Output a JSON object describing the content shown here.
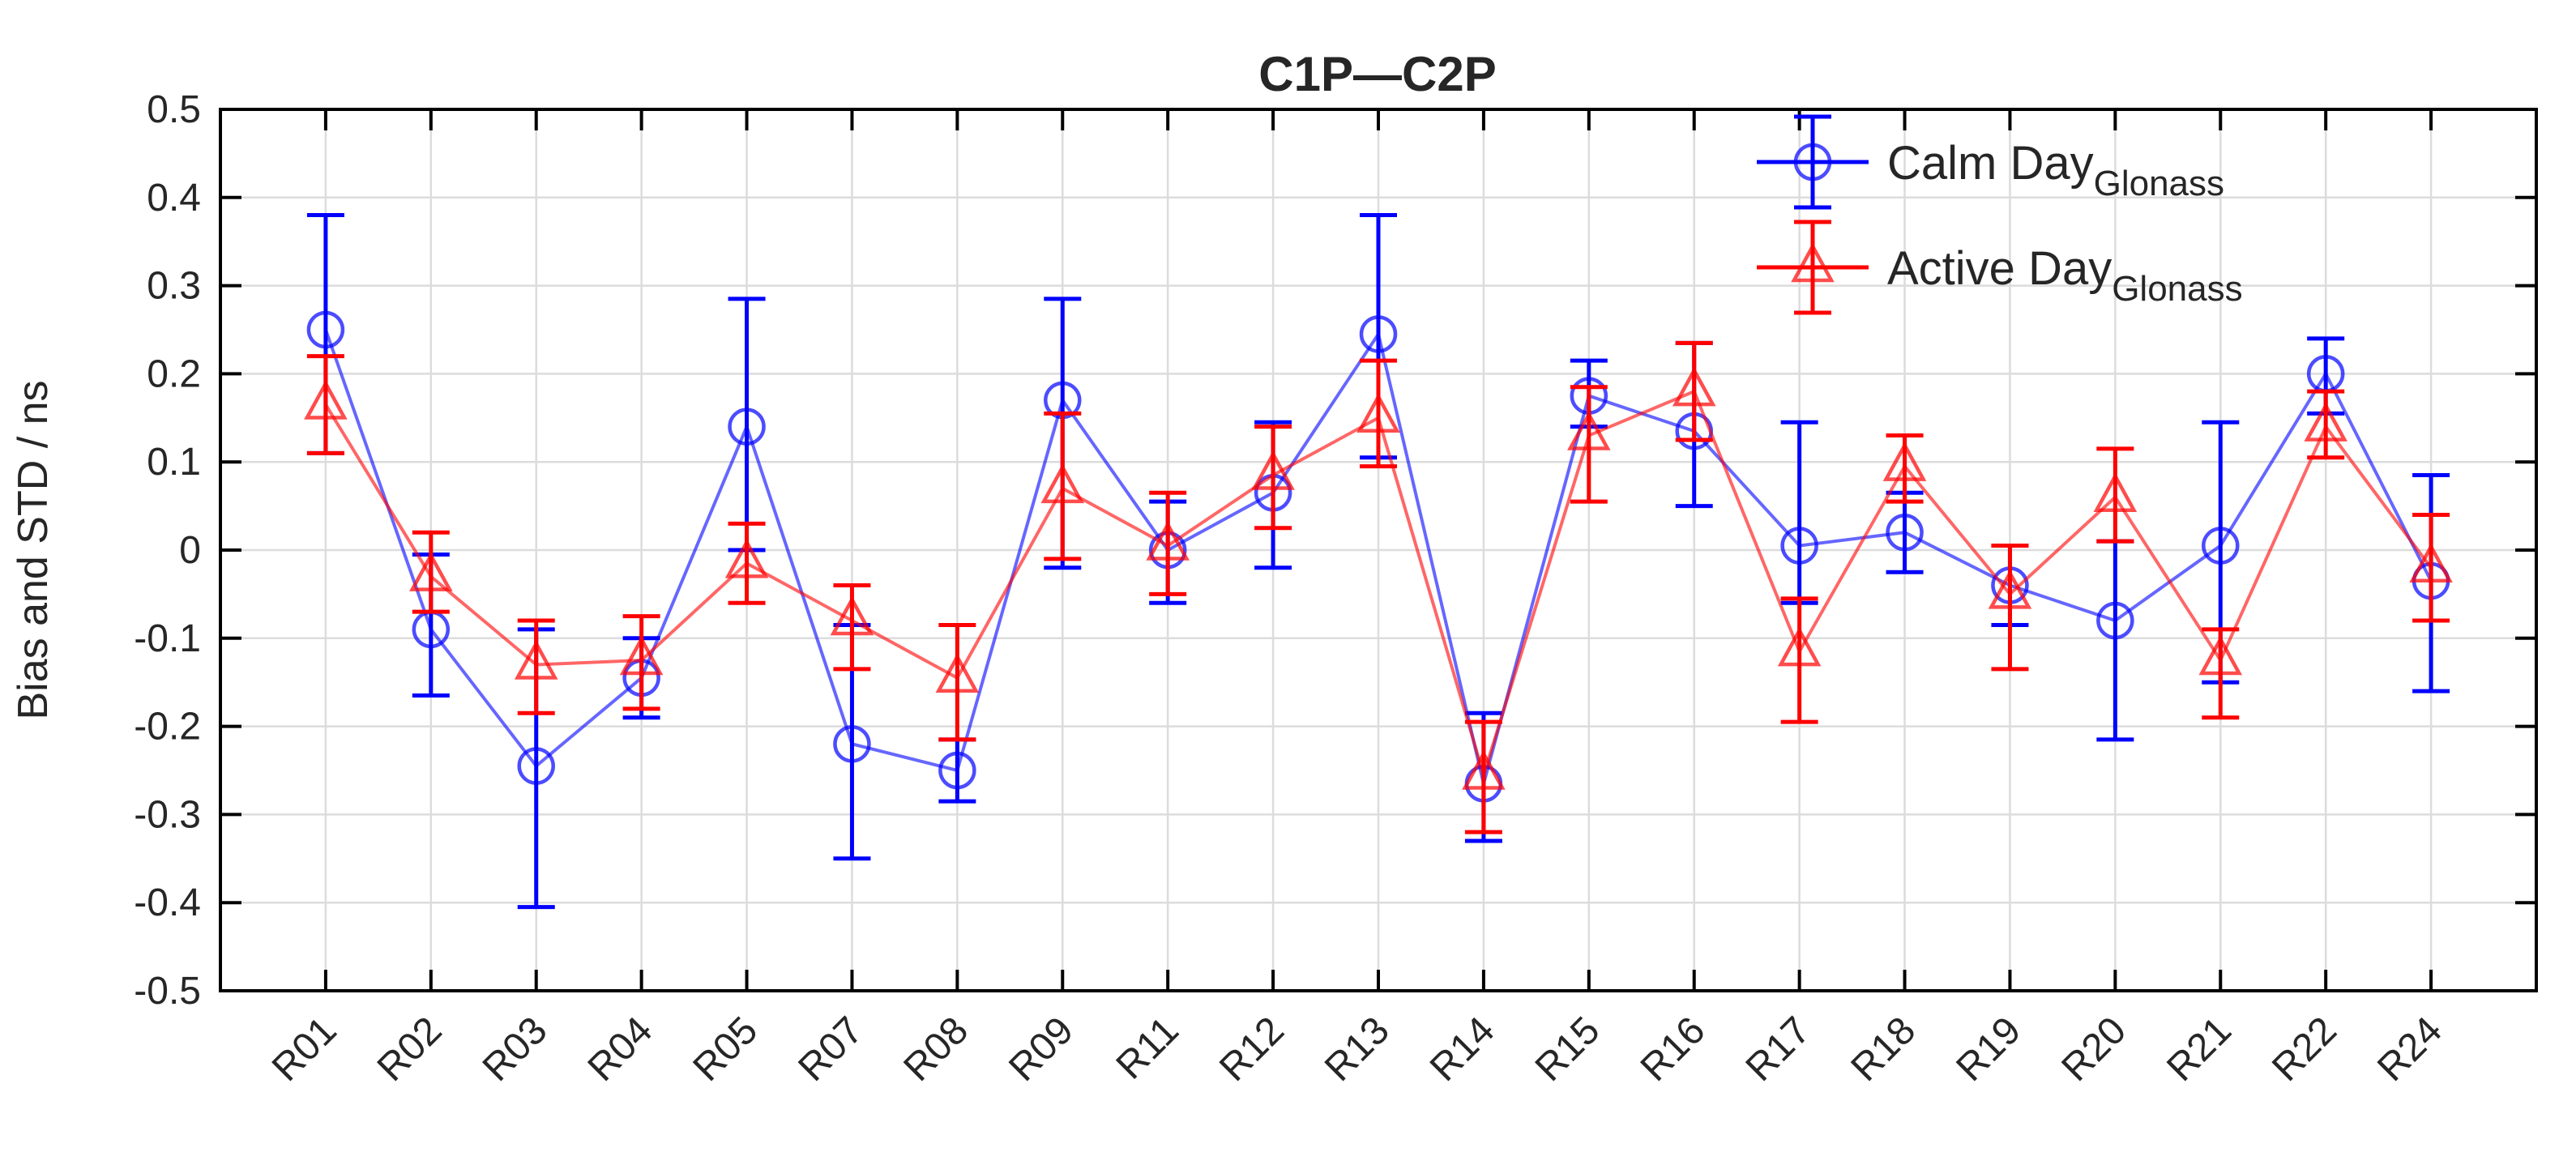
{
  "figure": {
    "background_color": "#ffffff",
    "axis_color": "#000000",
    "grid_color": "#dcdcdc",
    "text_color": "#262626"
  },
  "chart_data": {
    "type": "line",
    "title": "C1P—C2P",
    "ylabel": "Bias and STD / ns",
    "xlabel": "",
    "ylim": [
      -0.5,
      0.5
    ],
    "ytick_step": 0.1,
    "ytick_labels": [
      "0.5",
      "0.4",
      "0.3",
      "0.2",
      "0.1",
      "0",
      "-0.1",
      "-0.2",
      "-0.3",
      "-0.4",
      "-0.5"
    ],
    "grid": true,
    "legend_position": "top-right-inside",
    "error_bars": true,
    "categories": [
      "R01",
      "R02",
      "R03",
      "R04",
      "R05",
      "R07",
      "R08",
      "R09",
      "R11",
      "R12",
      "R13",
      "R14",
      "R15",
      "R16",
      "R17",
      "R18",
      "R19",
      "R20",
      "R21",
      "R22",
      "R24"
    ],
    "series": [
      {
        "name": "Calm Day Glonass",
        "legend_label": "Calm Day",
        "legend_subscript": "Glonass",
        "color": "#0000ff",
        "marker": "circle",
        "values": [
          0.25,
          -0.09,
          -0.245,
          -0.145,
          0.14,
          -0.22,
          -0.25,
          0.17,
          0.0,
          0.065,
          0.245,
          -0.265,
          0.175,
          0.135,
          0.005,
          0.02,
          -0.04,
          -0.08,
          0.005,
          0.2,
          -0.035
        ],
        "err_low": [
          0.11,
          -0.165,
          -0.405,
          -0.19,
          0.0,
          -0.35,
          -0.285,
          -0.02,
          -0.06,
          -0.02,
          0.105,
          -0.33,
          0.14,
          0.05,
          -0.06,
          -0.025,
          -0.085,
          -0.215,
          -0.15,
          0.155,
          -0.16
        ],
        "err_high": [
          0.38,
          -0.005,
          -0.09,
          -0.1,
          0.285,
          -0.085,
          -0.215,
          0.285,
          0.055,
          0.145,
          0.38,
          -0.185,
          0.215,
          0.235,
          0.145,
          0.065,
          0.005,
          0.01,
          0.145,
          0.24,
          0.085
        ]
      },
      {
        "name": "Active Day Glonass",
        "legend_label": "Active Day",
        "legend_subscript": "Glonass",
        "color": "#ff0000",
        "marker": "triangle",
        "values": [
          0.165,
          -0.03,
          -0.13,
          -0.125,
          -0.015,
          -0.08,
          -0.145,
          0.07,
          0.005,
          0.085,
          0.15,
          -0.255,
          0.13,
          0.18,
          -0.115,
          0.095,
          -0.05,
          0.06,
          -0.125,
          0.14,
          -0.02
        ],
        "err_low": [
          0.11,
          -0.07,
          -0.185,
          -0.18,
          -0.06,
          -0.135,
          -0.215,
          -0.01,
          -0.05,
          0.025,
          0.095,
          -0.32,
          0.055,
          0.125,
          -0.195,
          0.055,
          -0.135,
          0.01,
          -0.19,
          0.105,
          -0.08
        ],
        "err_high": [
          0.22,
          0.02,
          -0.08,
          -0.075,
          0.03,
          -0.04,
          -0.085,
          0.155,
          0.065,
          0.14,
          0.215,
          -0.195,
          0.185,
          0.235,
          -0.055,
          0.13,
          0.005,
          0.115,
          -0.09,
          0.18,
          0.04
        ]
      }
    ]
  }
}
